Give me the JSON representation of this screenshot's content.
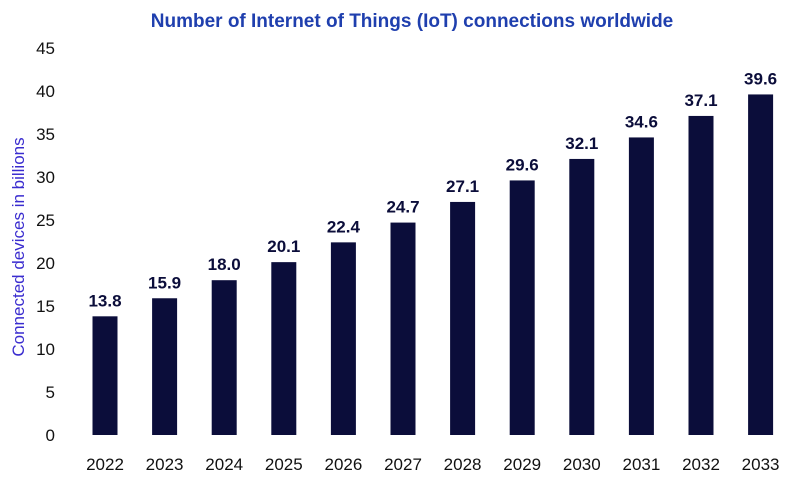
{
  "chart_data": {
    "type": "bar",
    "title": "Number of Internet of Things (IoT) connections worldwide",
    "xlabel": "",
    "ylabel": "Connected devices in billions",
    "categories": [
      "2022",
      "2023",
      "2024",
      "2025",
      "2026",
      "2027",
      "2028",
      "2029",
      "2030",
      "2031",
      "2032",
      "2033"
    ],
    "values": [
      13.8,
      15.9,
      18.0,
      20.1,
      22.4,
      24.7,
      27.1,
      29.6,
      32.1,
      34.6,
      37.1,
      39.6
    ],
    "value_labels": [
      "13.8",
      "15.9",
      "18.0",
      "20.1",
      "22.4",
      "24.7",
      "27.1",
      "29.6",
      "32.1",
      "34.6",
      "37.1",
      "39.6"
    ],
    "ylim": [
      0,
      45
    ],
    "yticks": [
      0,
      5,
      10,
      15,
      20,
      25,
      30,
      35,
      40,
      45
    ],
    "grid": false,
    "legend": "none",
    "bar_color": "#0b0d3a"
  }
}
